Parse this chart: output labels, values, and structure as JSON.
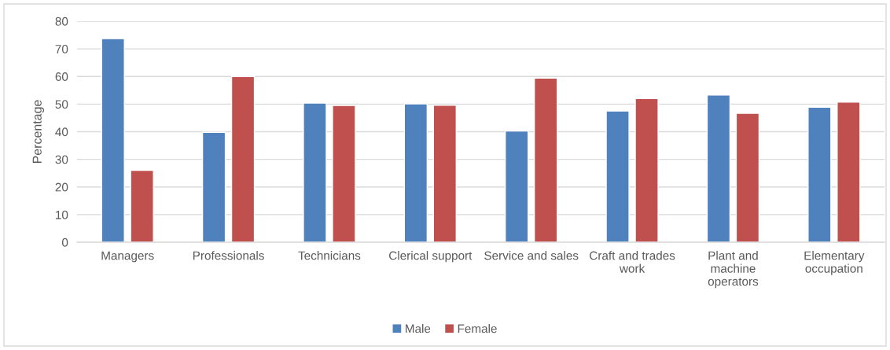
{
  "chart_data": {
    "type": "bar",
    "categories": [
      "Managers",
      "Professionals",
      "Technicians",
      "Clerical support",
      "Service and sales",
      "Craft and trades\nwork",
      "Plant and\nmachine\noperators",
      "Elementary\noccupation"
    ],
    "series": [
      {
        "name": "Male",
        "color": "#4f81bd",
        "values": [
          73.7,
          39.8,
          50.4,
          50.1,
          40.3,
          47.5,
          53.3,
          48.9
        ]
      },
      {
        "name": "Female",
        "color": "#c0504d",
        "values": [
          26.0,
          60.0,
          49.5,
          49.6,
          59.4,
          52.0,
          46.7,
          50.7
        ]
      }
    ],
    "ylabel": "Percentage",
    "ylim": [
      0,
      80
    ],
    "yticks": [
      0,
      10,
      20,
      30,
      40,
      50,
      60,
      70,
      80
    ],
    "grid": "y",
    "legend": "bottom"
  }
}
